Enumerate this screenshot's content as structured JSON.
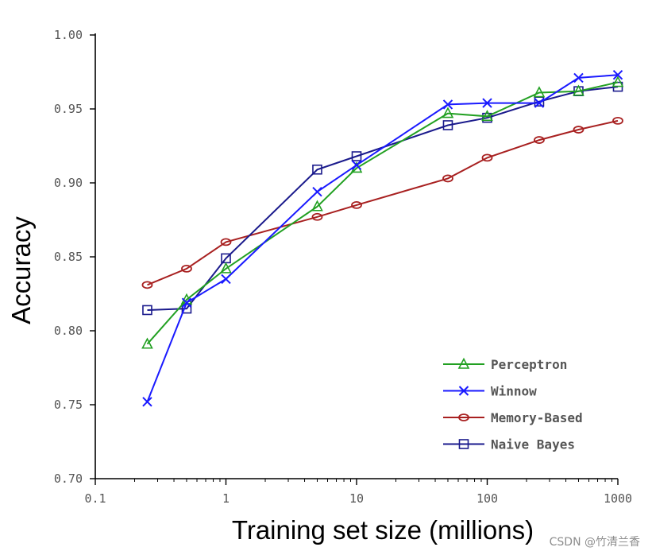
{
  "chart_data": {
    "type": "line",
    "xlabel": "Training set size (millions)",
    "ylabel": "Accuracy",
    "xscale": "log",
    "xlim": [
      0.1,
      1000
    ],
    "ylim": [
      0.7,
      1.0
    ],
    "xticks": [
      {
        "value": 0.1,
        "label": "0.1"
      },
      {
        "value": 1,
        "label": "1"
      },
      {
        "value": 10,
        "label": "10"
      },
      {
        "value": 100,
        "label": "100"
      },
      {
        "value": 1000,
        "label": "1000"
      }
    ],
    "yticks": [
      {
        "value": 0.7,
        "label": "0.70"
      },
      {
        "value": 0.75,
        "label": "0.75"
      },
      {
        "value": 0.8,
        "label": "0.80"
      },
      {
        "value": 0.85,
        "label": "0.85"
      },
      {
        "value": 0.9,
        "label": "0.90"
      },
      {
        "value": 0.95,
        "label": "0.95"
      },
      {
        "value": 1.0,
        "label": "1.00"
      }
    ],
    "grid": false,
    "legend_position": "bottom-right",
    "series": [
      {
        "name": "Perceptron",
        "color": "#22a022",
        "marker": "triangle",
        "x": [
          0.25,
          0.5,
          1,
          5,
          10,
          50,
          100,
          250,
          500,
          1000
        ],
        "y": [
          0.791,
          0.821,
          0.842,
          0.884,
          0.91,
          0.947,
          0.945,
          0.961,
          0.962,
          0.968
        ]
      },
      {
        "name": "Winnow",
        "color": "#1a1aff",
        "marker": "x",
        "x": [
          0.25,
          0.5,
          1,
          5,
          10,
          50,
          100,
          250,
          500,
          1000
        ],
        "y": [
          0.752,
          0.819,
          0.835,
          0.894,
          0.912,
          0.953,
          0.954,
          0.954,
          0.971,
          0.973
        ]
      },
      {
        "name": "Memory-Based",
        "color": "#a82020",
        "marker": "circle",
        "x": [
          0.25,
          0.5,
          1,
          5,
          10,
          50,
          100,
          250,
          500,
          1000
        ],
        "y": [
          0.831,
          0.842,
          0.86,
          0.877,
          0.885,
          0.903,
          0.917,
          0.929,
          0.936,
          0.942
        ]
      },
      {
        "name": "Naive Bayes",
        "color": "#1a1a8c",
        "marker": "square",
        "x": [
          0.25,
          0.5,
          1,
          5,
          10,
          50,
          100,
          250,
          500,
          1000
        ],
        "y": [
          0.814,
          0.815,
          0.849,
          0.909,
          0.918,
          0.939,
          0.944,
          0.955,
          0.962,
          0.965
        ]
      }
    ]
  },
  "watermark": "CSDN @竹清兰香"
}
